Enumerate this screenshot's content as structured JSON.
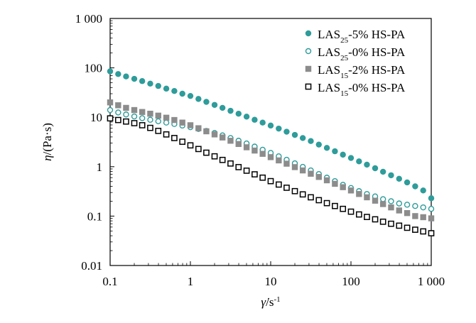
{
  "chart_data": {
    "type": "scatter",
    "x_scale": "log",
    "y_scale": "log",
    "xlim": [
      0.1,
      1000
    ],
    "ylim": [
      0.01,
      1000
    ],
    "grid": false,
    "legend_position": "top-right",
    "xlabel": {
      "symbol": "γ̇",
      "rest": "/s",
      "sup": "-1"
    },
    "ylabel": {
      "symbol": "η",
      "rest": "/(Pa·s)"
    },
    "x_ticks": [
      {
        "value": 0.1,
        "label": "0.1"
      },
      {
        "value": 1,
        "label": "1"
      },
      {
        "value": 10,
        "label": "10"
      },
      {
        "value": 100,
        "label": "100"
      },
      {
        "value": 1000,
        "label": "1 000"
      }
    ],
    "y_ticks": [
      {
        "value": 0.01,
        "label": "0.01"
      },
      {
        "value": 0.1,
        "label": "0.1"
      },
      {
        "value": 1,
        "label": "1"
      },
      {
        "value": 10,
        "label": "10"
      },
      {
        "value": 100,
        "label": "100"
      },
      {
        "value": 1000,
        "label": "1 000"
      }
    ],
    "x": [
      0.1,
      0.126,
      0.158,
      0.2,
      0.251,
      0.316,
      0.398,
      0.501,
      0.631,
      0.794,
      1,
      1.26,
      1.58,
      2,
      2.51,
      3.16,
      3.98,
      5.01,
      6.31,
      7.94,
      10,
      12.6,
      15.8,
      20,
      25.1,
      31.6,
      39.8,
      50.1,
      63.1,
      79.4,
      100,
      126,
      158,
      200,
      251,
      316,
      398,
      501,
      631,
      794,
      1000
    ],
    "series": [
      {
        "name": "LAS25-5% HS-PA",
        "label_base": "LAS",
        "label_sub": "25",
        "label_rest": "-5% HS-PA",
        "marker": "circle",
        "filled": true,
        "color": "#2e9c9a",
        "values": [
          85,
          75,
          67,
          60,
          54,
          48,
          43,
          38,
          34,
          30,
          27,
          23.5,
          20.5,
          17.8,
          15.5,
          13.5,
          11.8,
          10.3,
          8.9,
          7.8,
          6.8,
          5.9,
          5.1,
          4.4,
          3.8,
          3.3,
          2.8,
          2.4,
          2.05,
          1.75,
          1.5,
          1.28,
          1.1,
          0.93,
          0.79,
          0.67,
          0.57,
          0.48,
          0.4,
          0.33,
          0.23
        ]
      },
      {
        "name": "LAS25-0% HS-PA",
        "label_base": "LAS",
        "label_sub": "25",
        "label_rest": "-0% HS-PA",
        "marker": "circle",
        "filled": false,
        "color": "#2e9c9a",
        "values": [
          14,
          12.5,
          11.4,
          10.4,
          9.6,
          8.9,
          8.3,
          7.8,
          7.3,
          6.8,
          6.3,
          5.8,
          5.3,
          4.8,
          4.3,
          3.8,
          3.35,
          2.95,
          2.55,
          2.2,
          1.9,
          1.62,
          1.38,
          1.17,
          0.99,
          0.84,
          0.71,
          0.6,
          0.51,
          0.43,
          0.37,
          0.32,
          0.28,
          0.25,
          0.22,
          0.2,
          0.18,
          0.17,
          0.16,
          0.15,
          0.14
        ]
      },
      {
        "name": "LAS15-2% HS-PA",
        "label_base": "LAS",
        "label_sub": "15",
        "label_rest": "-2% HS-PA",
        "marker": "square",
        "filled": true,
        "color": "#8c8c8c",
        "values": [
          20,
          17.5,
          15.5,
          14,
          12.8,
          11.8,
          10.8,
          9.8,
          8.8,
          7.8,
          6.9,
          6,
          5.2,
          4.5,
          3.9,
          3.35,
          2.88,
          2.47,
          2.12,
          1.82,
          1.56,
          1.34,
          1.15,
          0.98,
          0.84,
          0.72,
          0.62,
          0.53,
          0.45,
          0.385,
          0.33,
          0.28,
          0.24,
          0.205,
          0.175,
          0.15,
          0.13,
          0.115,
          0.1,
          0.095,
          0.09
        ]
      },
      {
        "name": "LAS15-0% HS-PA",
        "label_base": "LAS",
        "label_sub": "15",
        "label_rest": "-0% HS-PA",
        "marker": "square",
        "filled": false,
        "color": "#000000",
        "values": [
          9.5,
          8.8,
          8.2,
          7.6,
          6.9,
          6.1,
          5.3,
          4.5,
          3.8,
          3.2,
          2.7,
          2.28,
          1.92,
          1.62,
          1.37,
          1.16,
          0.98,
          0.83,
          0.7,
          0.6,
          0.51,
          0.435,
          0.375,
          0.32,
          0.275,
          0.24,
          0.21,
          0.183,
          0.16,
          0.14,
          0.123,
          0.108,
          0.096,
          0.086,
          0.077,
          0.07,
          0.064,
          0.058,
          0.053,
          0.049,
          0.045
        ]
      }
    ]
  }
}
